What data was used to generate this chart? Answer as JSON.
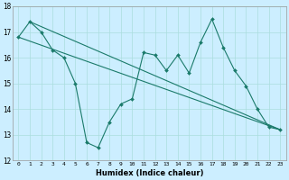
{
  "title": "",
  "xlabel": "Humidex (Indice chaleur)",
  "bg_color": "#cceeff",
  "line_color": "#1a7a6a",
  "grid_color": "#aadddd",
  "xlim": [
    -0.5,
    23.5
  ],
  "ylim": [
    12,
    18
  ],
  "yticks": [
    12,
    13,
    14,
    15,
    16,
    17,
    18
  ],
  "xticks": [
    0,
    1,
    2,
    3,
    4,
    5,
    6,
    7,
    8,
    9,
    10,
    11,
    12,
    13,
    14,
    15,
    16,
    17,
    18,
    19,
    20,
    21,
    22,
    23
  ],
  "series_main": {
    "x": [
      0,
      1,
      2,
      3,
      4,
      5,
      6,
      7,
      8,
      9,
      10,
      11,
      12,
      13,
      14,
      15,
      16,
      17,
      18,
      19,
      20,
      21,
      22,
      23
    ],
    "y": [
      16.8,
      17.4,
      17.0,
      16.3,
      16.0,
      15.0,
      12.7,
      12.5,
      13.5,
      14.2,
      14.4,
      16.2,
      16.1,
      15.5,
      16.1,
      15.4,
      16.6,
      17.5,
      16.4,
      15.5,
      14.9,
      14.0,
      13.3,
      13.2
    ]
  },
  "line1": {
    "x": [
      0,
      23
    ],
    "y": [
      16.8,
      13.2
    ]
  },
  "line2": {
    "x": [
      1,
      23
    ],
    "y": [
      17.4,
      13.2
    ]
  }
}
